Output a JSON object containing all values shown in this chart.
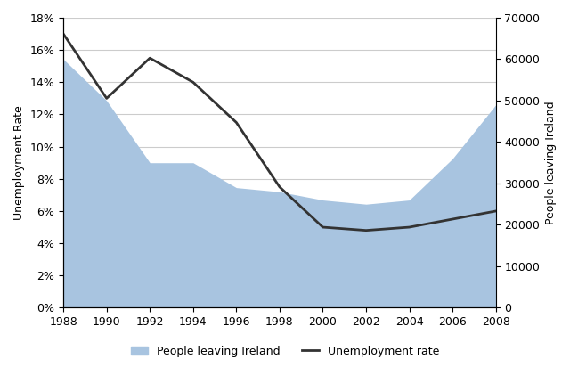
{
  "years": [
    1988,
    1990,
    1992,
    1994,
    1996,
    1998,
    2000,
    2002,
    2004,
    2006,
    2008
  ],
  "unemployment_rate": [
    17.0,
    13.0,
    15.5,
    14.0,
    11.5,
    7.5,
    5.0,
    4.8,
    5.0,
    5.5,
    6.0
  ],
  "people_leaving": [
    60000,
    50000,
    35000,
    35000,
    29000,
    28000,
    26000,
    25000,
    26000,
    36000,
    49000
  ],
  "left_ylabel": "Unemployment Rate",
  "right_ylabel": "People leaving Ireland",
  "left_yticks_pct": [
    0,
    2,
    4,
    6,
    8,
    10,
    12,
    14,
    16,
    18
  ],
  "right_yticks": [
    0,
    10000,
    20000,
    30000,
    40000,
    50000,
    60000,
    70000
  ],
  "area_color": "#a8c4e0",
  "line_color": "#333333",
  "background_color": "#ffffff",
  "grid_color": "#cccccc",
  "legend_area_label": "People leaving Ireland",
  "legend_line_label": "Unemployment rate",
  "xticks": [
    1988,
    1990,
    1992,
    1994,
    1996,
    1998,
    2000,
    2002,
    2004,
    2006,
    2008
  ],
  "left_ylim": [
    0,
    18
  ],
  "right_ylim": [
    0,
    70000
  ]
}
